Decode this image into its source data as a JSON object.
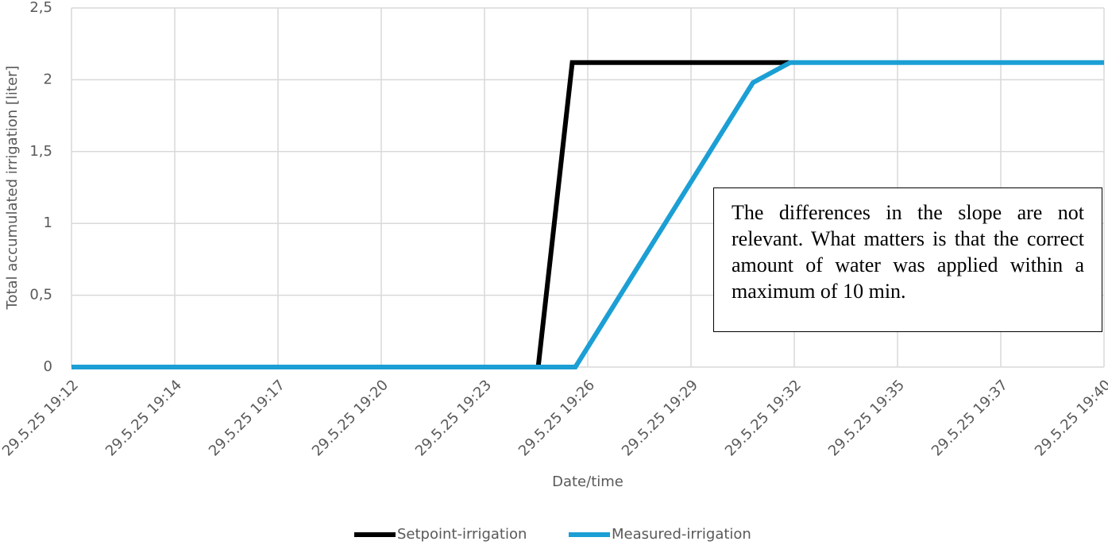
{
  "chart_data": {
    "type": "line",
    "x_label": "Date/time",
    "y_label": "Total accumulated irrigation [liter]",
    "annotation": "The differences in the slope are not relevant. What matters is that the correct amount of water was applied within a maximum of 10 min.",
    "xlim": [
      0,
      10
    ],
    "xticks": [
      {
        "value": 0,
        "label": "29.5.25 19:12"
      },
      {
        "value": 1,
        "label": "29.5.25 19:14"
      },
      {
        "value": 2,
        "label": "29.5.25 19:17"
      },
      {
        "value": 3,
        "label": "29.5.25 19:20"
      },
      {
        "value": 4,
        "label": "29.5.25 19:23"
      },
      {
        "value": 5,
        "label": "29.5.25 19:26"
      },
      {
        "value": 6,
        "label": "29.5.25 19:29"
      },
      {
        "value": 7,
        "label": "29.5.25 19:32"
      },
      {
        "value": 8,
        "label": "29.5.25 19:35"
      },
      {
        "value": 9,
        "label": "29.5.25 19:37"
      },
      {
        "value": 10,
        "label": "29.5.25 19:40"
      }
    ],
    "ylim": [
      0,
      2.5
    ],
    "yticks": [
      0,
      {
        "value": 0.5,
        "label": "0,5"
      },
      1,
      {
        "value": 1.5,
        "label": "1,5"
      },
      2,
      {
        "value": 2.5,
        "label": "2,5"
      }
    ],
    "grid": true,
    "legend": "bottom",
    "series": [
      {
        "name": "Setpoint-irrigation",
        "color": "#000000",
        "x": [
          0,
          4.52,
          4.85,
          6.95
        ],
        "values": [
          0,
          0,
          2.12,
          2.12
        ]
      },
      {
        "name": "Measured-irrigation",
        "color": "#1b9fd4",
        "x": [
          0,
          4.88,
          6.6,
          6.96,
          10
        ],
        "values": [
          0,
          0,
          1.98,
          2.12,
          2.12
        ]
      }
    ]
  }
}
